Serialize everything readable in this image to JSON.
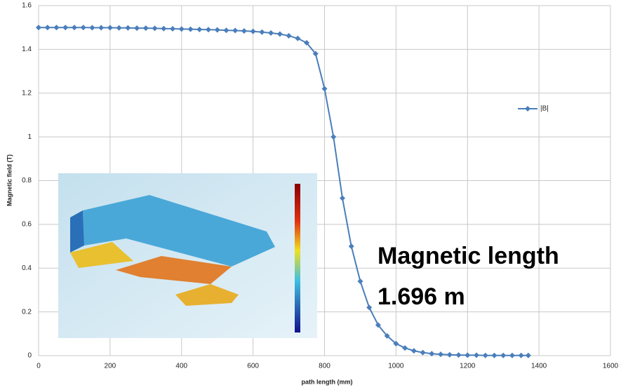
{
  "chart_data": {
    "type": "line",
    "x_label": "path length (mm)",
    "y_label": "Magnetic field (T)",
    "x": [
      0,
      25,
      50,
      75,
      100,
      125,
      150,
      175,
      200,
      225,
      250,
      275,
      300,
      325,
      350,
      375,
      400,
      425,
      450,
      475,
      500,
      525,
      550,
      575,
      600,
      625,
      650,
      675,
      700,
      725,
      750,
      775,
      800,
      825,
      850,
      875,
      900,
      925,
      950,
      975,
      1000,
      1025,
      1050,
      1075,
      1100,
      1125,
      1150,
      1175,
      1200,
      1225,
      1250,
      1275,
      1300,
      1325,
      1350,
      1370
    ],
    "series": [
      {
        "name": "|B|",
        "color": "#4a7ebb",
        "values": [
          1.5,
          1.5,
          1.5,
          1.5,
          1.5,
          1.5,
          1.499,
          1.499,
          1.499,
          1.498,
          1.498,
          1.497,
          1.497,
          1.496,
          1.495,
          1.494,
          1.493,
          1.492,
          1.491,
          1.49,
          1.489,
          1.487,
          1.486,
          1.484,
          1.482,
          1.479,
          1.475,
          1.47,
          1.462,
          1.45,
          1.43,
          1.38,
          1.22,
          1.0,
          0.72,
          0.5,
          0.34,
          0.22,
          0.14,
          0.09,
          0.055,
          0.035,
          0.022,
          0.014,
          0.009,
          0.006,
          0.004,
          0.003,
          0.002,
          0.002,
          0.001,
          0.001,
          0.001,
          0.001,
          0.001,
          0.001
        ]
      }
    ],
    "xlim": [
      0,
      1600
    ],
    "xticks": [
      0,
      200,
      400,
      600,
      800,
      1000,
      1200,
      1400,
      1600
    ],
    "ylim": [
      0,
      1.6
    ],
    "yticks": [
      0,
      0.2,
      0.4,
      0.6,
      0.8,
      1,
      1.2,
      1.4,
      1.6
    ],
    "grid": true,
    "legend": "right",
    "annotations": [
      "Magnetic length",
      "1.696 m"
    ]
  }
}
